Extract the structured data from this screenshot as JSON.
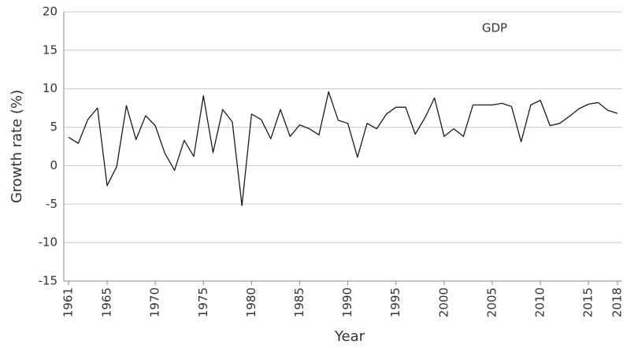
{
  "chart_data": {
    "type": "line",
    "annotation": "GDP",
    "xlabel": "Year",
    "ylabel": "Growth rate (%)",
    "x": [
      1961,
      1962,
      1963,
      1964,
      1965,
      1966,
      1967,
      1968,
      1969,
      1970,
      1971,
      1972,
      1973,
      1974,
      1975,
      1976,
      1977,
      1978,
      1979,
      1980,
      1981,
      1982,
      1983,
      1984,
      1985,
      1986,
      1987,
      1988,
      1989,
      1990,
      1991,
      1992,
      1993,
      1994,
      1995,
      1996,
      1997,
      1998,
      1999,
      2000,
      2001,
      2002,
      2003,
      2004,
      2005,
      2006,
      2007,
      2008,
      2009,
      2010,
      2011,
      2012,
      2013,
      2014,
      2015,
      2016,
      2017,
      2018
    ],
    "series": [
      {
        "name": "GDP",
        "color": "#1a1a1a",
        "values": [
          3.7,
          2.9,
          6.0,
          7.5,
          -2.6,
          -0.1,
          7.8,
          3.4,
          6.5,
          5.2,
          1.6,
          -0.6,
          3.3,
          1.2,
          9.1,
          1.7,
          7.3,
          5.7,
          -5.2,
          6.7,
          6.0,
          3.5,
          7.3,
          3.8,
          5.3,
          4.8,
          4.0,
          9.6,
          5.9,
          5.5,
          1.1,
          5.5,
          4.8,
          6.7,
          7.6,
          7.6,
          4.1,
          6.2,
          8.8,
          3.8,
          4.8,
          3.8,
          7.9,
          7.9,
          7.9,
          8.1,
          7.7,
          3.1,
          7.9,
          8.5,
          5.2,
          5.5,
          6.4,
          7.4,
          8.0,
          8.2,
          7.2,
          6.8
        ]
      }
    ],
    "xlim": [
      1960.5,
      2018.5
    ],
    "xticks": [
      1961,
      1965,
      1970,
      1975,
      1980,
      1985,
      1990,
      1995,
      2000,
      2005,
      2010,
      2015,
      2018
    ],
    "ylim": [
      -15,
      20
    ],
    "yticks": [
      -15,
      -10,
      -5,
      0,
      5,
      10,
      15,
      20
    ],
    "grid": true
  }
}
